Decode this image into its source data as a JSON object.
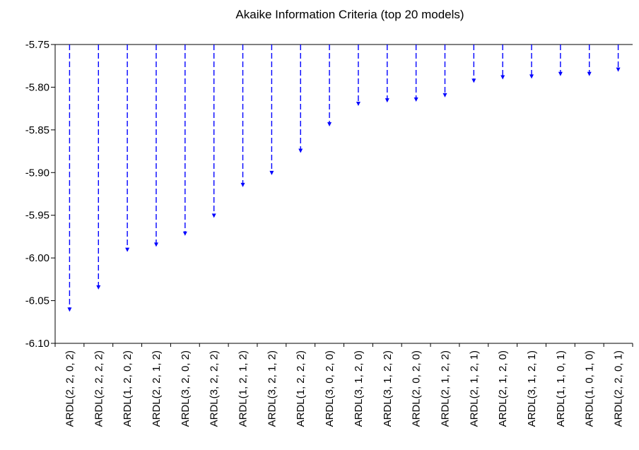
{
  "chart_data": {
    "type": "bar",
    "title": "Akaike Information Criteria (top 20 models)",
    "xlabel": "",
    "ylabel": "",
    "ylim": [
      -6.1,
      -5.75
    ],
    "yticks": [
      "-5.75",
      "-5.80",
      "-5.85",
      "-5.90",
      "-5.95",
      "-6.00",
      "-6.05",
      "-6.10"
    ],
    "bar_baseline": -5.75,
    "line_style": "dashed",
    "marker": "arrow-down",
    "color": "#0000ff",
    "grid": false,
    "categories": [
      "ARDL(2, 2, 0, 2)",
      "ARDL(2, 2, 2, 2)",
      "ARDL(1, 2, 0, 2)",
      "ARDL(2, 2, 1, 2)",
      "ARDL(3, 2, 0, 2)",
      "ARDL(3, 2, 2, 2)",
      "ARDL(1, 2, 1, 2)",
      "ARDL(3, 2, 1, 2)",
      "ARDL(1, 2, 2, 2)",
      "ARDL(3, 0, 2, 0)",
      "ARDL(3, 1, 2, 0)",
      "ARDL(3, 1, 2, 2)",
      "ARDL(2, 0, 2, 0)",
      "ARDL(2, 1, 2, 2)",
      "ARDL(2, 1, 2, 1)",
      "ARDL(2, 1, 2, 0)",
      "ARDL(3, 1, 2, 1)",
      "ARDL(1, 1, 0, 1)",
      "ARDL(1, 0, 1, 0)",
      "ARDL(2, 2, 0, 1)"
    ],
    "values": [
      -6.063,
      -6.037,
      -5.993,
      -5.987,
      -5.974,
      -5.953,
      -5.917,
      -5.903,
      -5.877,
      -5.846,
      -5.822,
      -5.818,
      -5.817,
      -5.812,
      -5.795,
      -5.791,
      -5.79,
      -5.787,
      -5.787,
      -5.782
    ]
  }
}
